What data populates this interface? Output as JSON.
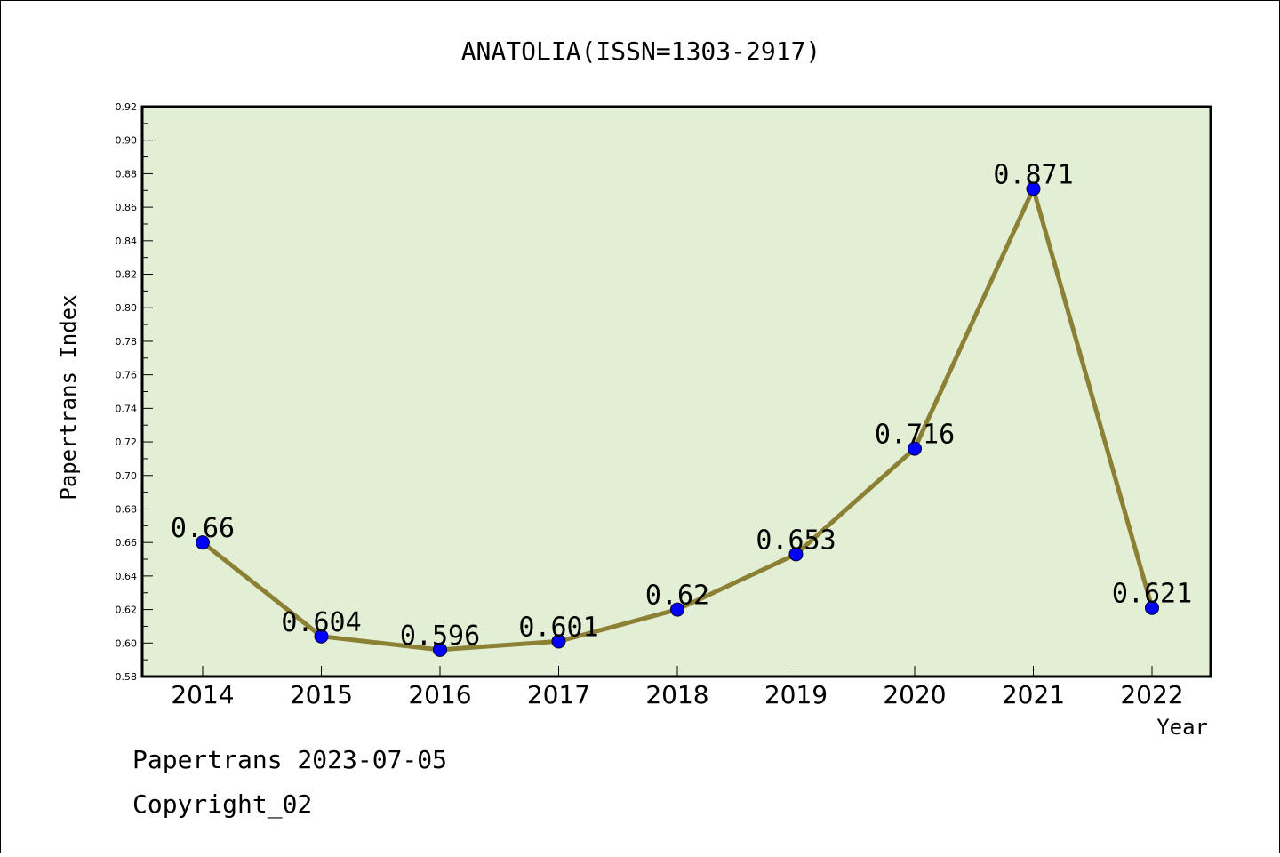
{
  "chart_data": {
    "type": "line",
    "title": "ANATOLIA(ISSN=1303-2917)",
    "xlabel": "Year",
    "ylabel": "Papertrans Index",
    "categories": [
      "2014",
      "2015",
      "2016",
      "2017",
      "2018",
      "2019",
      "2020",
      "2021",
      "2022"
    ],
    "values": [
      0.66,
      0.604,
      0.596,
      0.601,
      0.62,
      0.653,
      0.716,
      0.871,
      0.621
    ],
    "data_labels": [
      "0.66",
      "0.604",
      "0.596",
      "0.601",
      "0.62",
      "0.653",
      "0.716",
      "0.871",
      "0.621"
    ],
    "ylim": [
      0.58,
      0.92
    ],
    "yticks": [
      "0.58",
      "0.60",
      "0.62",
      "0.64",
      "0.66",
      "0.68",
      "0.70",
      "0.72",
      "0.74",
      "0.76",
      "0.78",
      "0.80",
      "0.82",
      "0.84",
      "0.86",
      "0.88",
      "0.90",
      "0.92"
    ],
    "grid": false,
    "colors": {
      "plot_bg": "#e2efd5",
      "line": "#8c8035",
      "marker": "#0000ff"
    }
  },
  "footer": {
    "line1": "Papertrans 2023-07-05",
    "line2": "Copyright_02"
  }
}
